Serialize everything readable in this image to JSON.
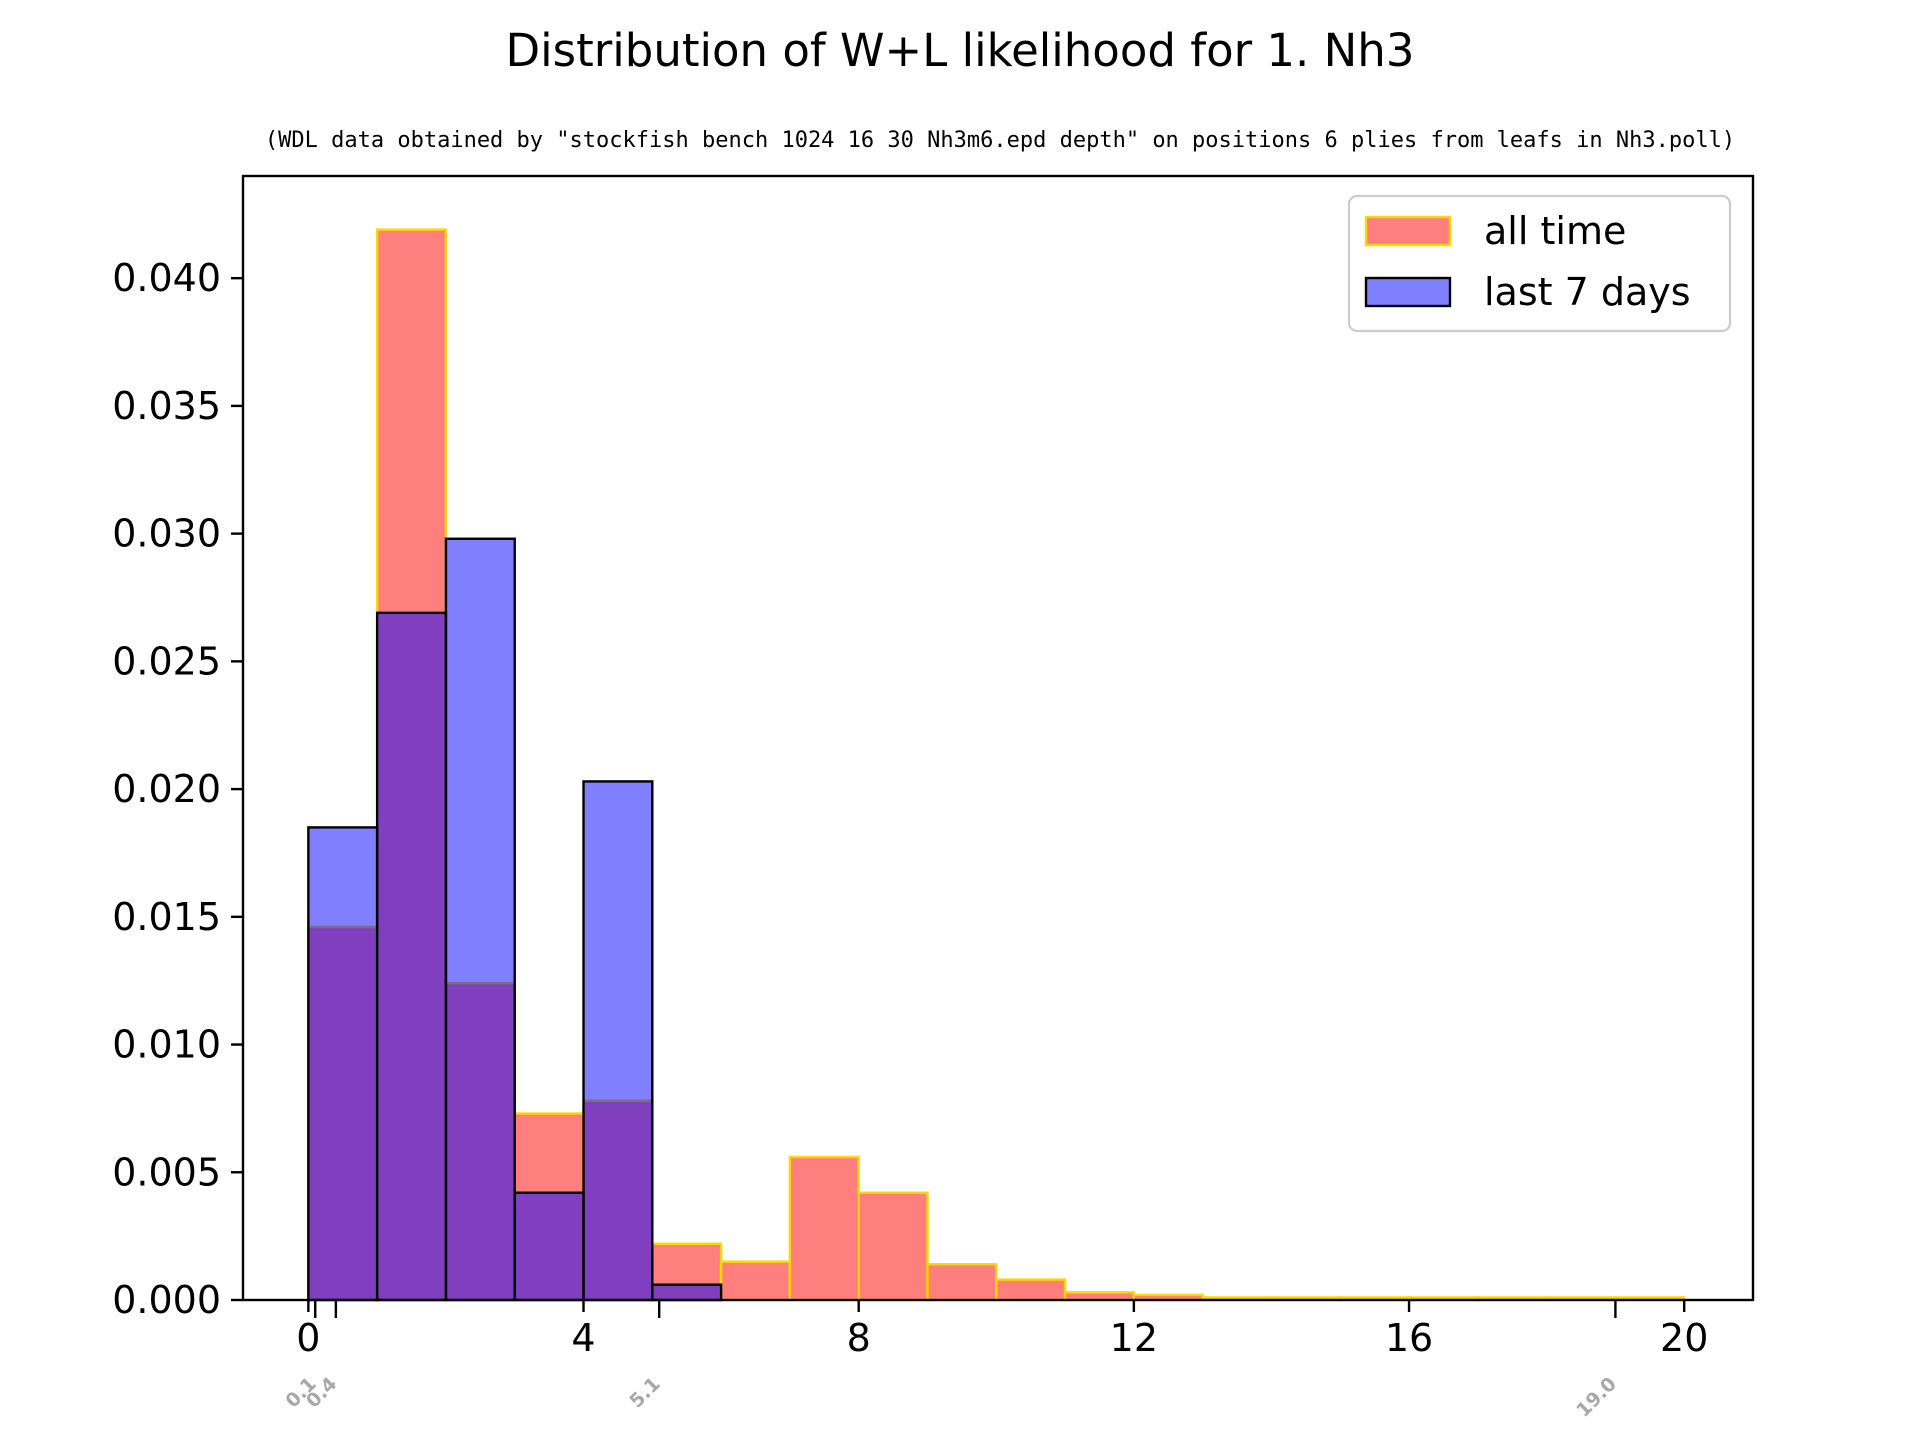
{
  "chart_data": {
    "type": "bar",
    "title": "Distribution of W+L likelihood for 1. Nh3",
    "subtitle": "(WDL data obtained by \"stockfish bench 1024 16 30 Nh3m6.epd depth\" on positions 6 plies from leafs in Nh3.poll)",
    "xlabel": "",
    "ylabel": "",
    "xlim": [
      -0.95,
      21.0
    ],
    "ylim": [
      0,
      0.044
    ],
    "bin_edges": [
      0,
      1,
      2,
      3,
      4,
      5,
      6,
      7,
      8,
      9,
      10,
      11,
      12,
      13,
      14,
      15,
      16,
      17,
      18,
      19,
      20
    ],
    "x_ticks": [
      "0",
      "4",
      "8",
      "12",
      "16",
      "20"
    ],
    "x_tick_values": [
      0,
      4,
      8,
      12,
      16,
      20
    ],
    "y_ticks": [
      "0.000",
      "0.005",
      "0.010",
      "0.015",
      "0.020",
      "0.025",
      "0.030",
      "0.035",
      "0.040"
    ],
    "y_tick_values": [
      0,
      0.005,
      0.01,
      0.015,
      0.02,
      0.025,
      0.03,
      0.035,
      0.04
    ],
    "series": [
      {
        "name": "all time",
        "color": "#ff0000",
        "edge_color": "#ffd700",
        "alpha": 0.5,
        "values": [
          0.0146,
          0.0419,
          0.0124,
          0.0073,
          0.0078,
          0.0022,
          0.0015,
          0.0056,
          0.0042,
          0.0014,
          0.0008,
          0.0003,
          0.0002,
          0.0001,
          0.0001,
          0.0001,
          0.0001,
          0.0001,
          0.0001,
          0.0001
        ]
      },
      {
        "name": "last 7 days",
        "color": "#0000ff",
        "edge_color": "#000000",
        "alpha": 0.5,
        "values": [
          0.0185,
          0.0269,
          0.0298,
          0.0042,
          0.0203,
          0.0006,
          0,
          0,
          0,
          0,
          0,
          0,
          0,
          0,
          0,
          0,
          0,
          0,
          0,
          0
        ]
      }
    ],
    "annotations": [
      {
        "label": "0.1",
        "x": 0.1
      },
      {
        "label": "0.4",
        "x": 0.4
      },
      {
        "label": "5.1",
        "x": 5.1
      },
      {
        "label": "19.0",
        "x": 19.0
      }
    ],
    "legend_position": "top-right"
  }
}
